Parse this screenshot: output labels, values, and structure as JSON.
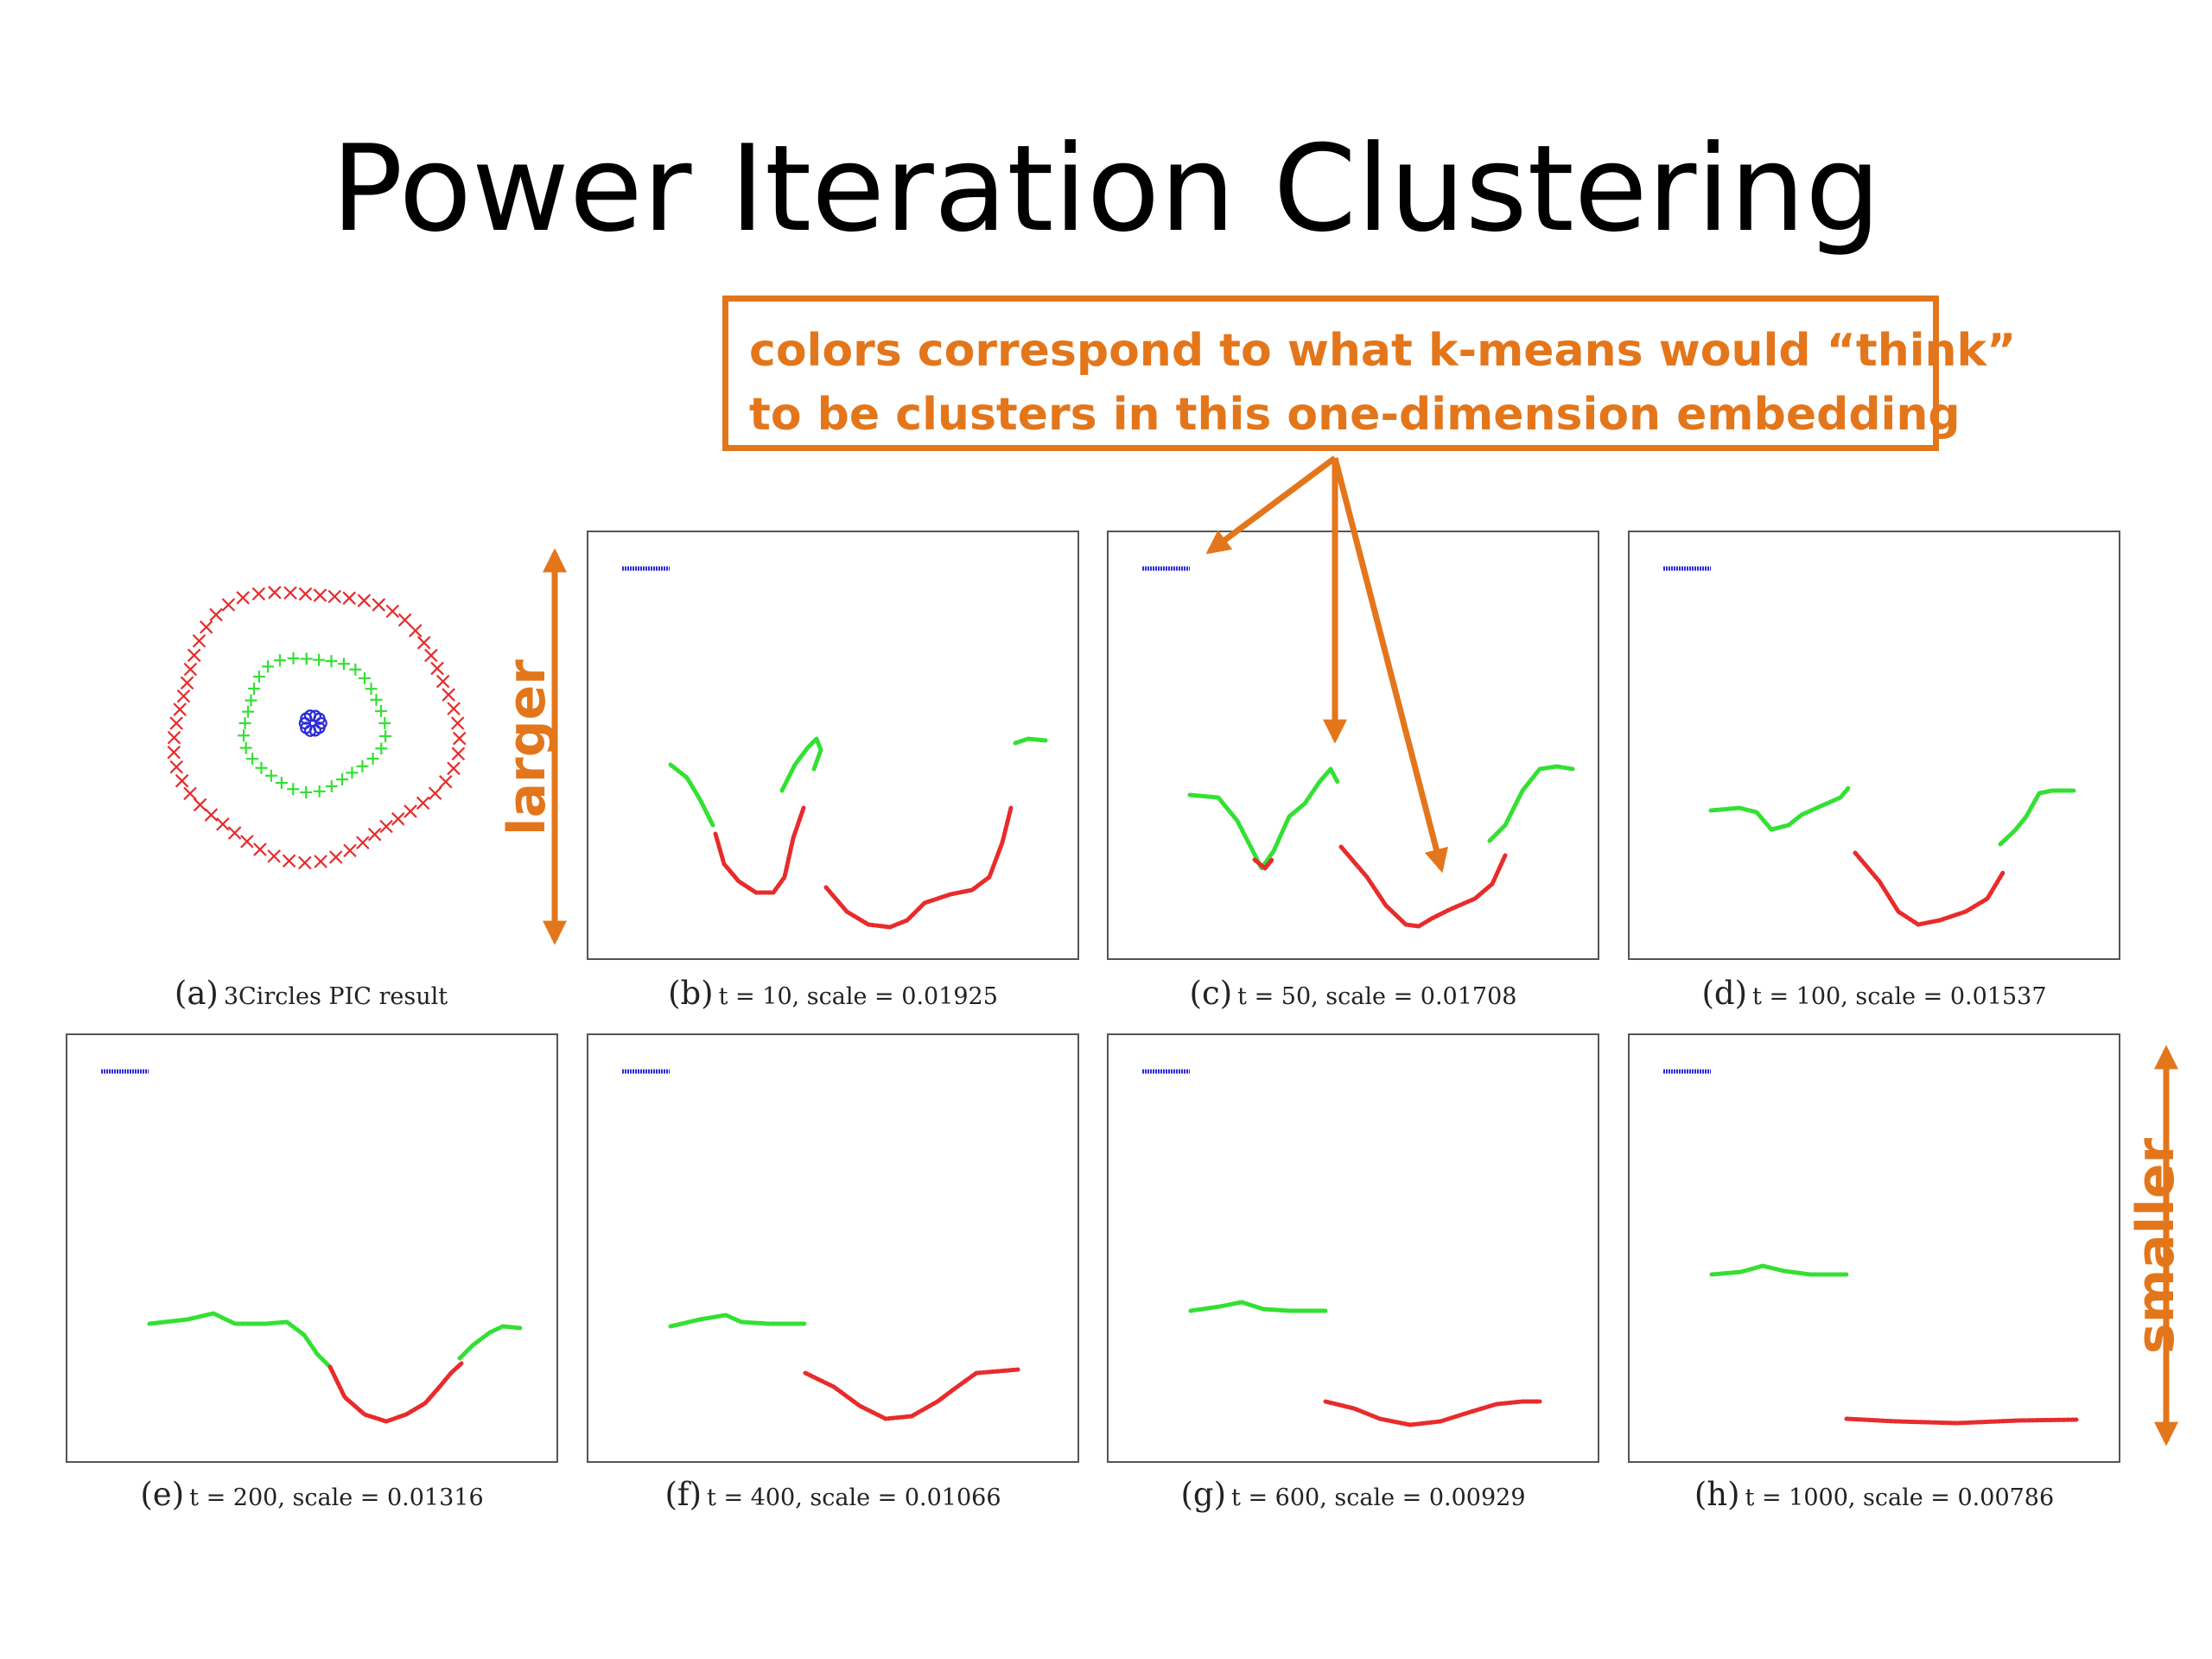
{
  "title": "Power Iteration Clustering",
  "callout": {
    "line1": "colors correspond to what k-means would “think”",
    "line2": "to be clusters in this one-dimension embedding"
  },
  "labels": {
    "larger": "larger",
    "smaller": "smaller"
  },
  "colors": {
    "accent": "#e3761b",
    "cluster_blue": "#2b2bd9",
    "cluster_green": "#33e033",
    "cluster_red": "#e82b2b"
  },
  "panels": [
    {
      "id": "a",
      "label": "(a)",
      "caption": "3Circles PIC result"
    },
    {
      "id": "b",
      "label": "(b)",
      "caption": "t = 10, scale = 0.01925"
    },
    {
      "id": "c",
      "label": "(c)",
      "caption": "t = 50, scale = 0.01708"
    },
    {
      "id": "d",
      "label": "(d)",
      "caption": "t = 100, scale = 0.01537"
    },
    {
      "id": "e",
      "label": "(e)",
      "caption": "t = 200, scale = 0.01316"
    },
    {
      "id": "f",
      "label": "(f)",
      "caption": "t = 400, scale = 0.01066"
    },
    {
      "id": "g",
      "label": "(g)",
      "caption": "t = 600, scale = 0.00929"
    },
    {
      "id": "h",
      "label": "(h)",
      "caption": "t = 1000, scale = 0.00786"
    }
  ]
}
